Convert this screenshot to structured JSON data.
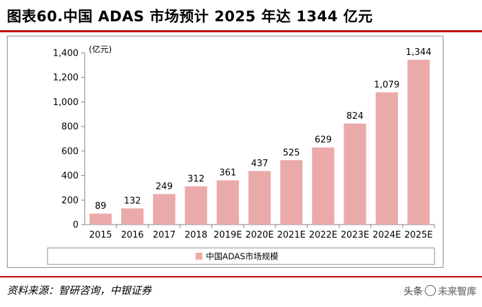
{
  "title": "图表60.中国 ADAS 市场预计 2025 年达 1344 亿元",
  "source": "资料来源：智研咨询，中银证券",
  "watermark": {
    "prefix": "头条",
    "brand": "未来智库"
  },
  "colors": {
    "bar": "#ebaaaa",
    "rule": "#c00000",
    "axis": "#7f7f7f"
  },
  "chart_data": {
    "type": "bar",
    "title": "",
    "unit_label": "(亿元)",
    "categories": [
      "2015",
      "2016",
      "2017",
      "2018",
      "2019E",
      "2020E",
      "2021E",
      "2022E",
      "2023E",
      "2024E",
      "2025E"
    ],
    "series": [
      {
        "name": "中国ADAS市场规模",
        "values": [
          89,
          132,
          249,
          312,
          361,
          437,
          525,
          629,
          824,
          1079,
          1344
        ],
        "labels": [
          "89",
          "132",
          "249",
          "312",
          "361",
          "437",
          "525",
          "629",
          "824",
          "1,079",
          "1,344"
        ]
      }
    ],
    "ylim": [
      0,
      1400
    ],
    "yticks": [
      0,
      200,
      400,
      600,
      800,
      1000,
      1200,
      1400
    ],
    "ytick_labels": [
      "0",
      "200",
      "400",
      "600",
      "800",
      "1,000",
      "1,200",
      "1,400"
    ],
    "legend_position": "bottom",
    "grid": false
  }
}
